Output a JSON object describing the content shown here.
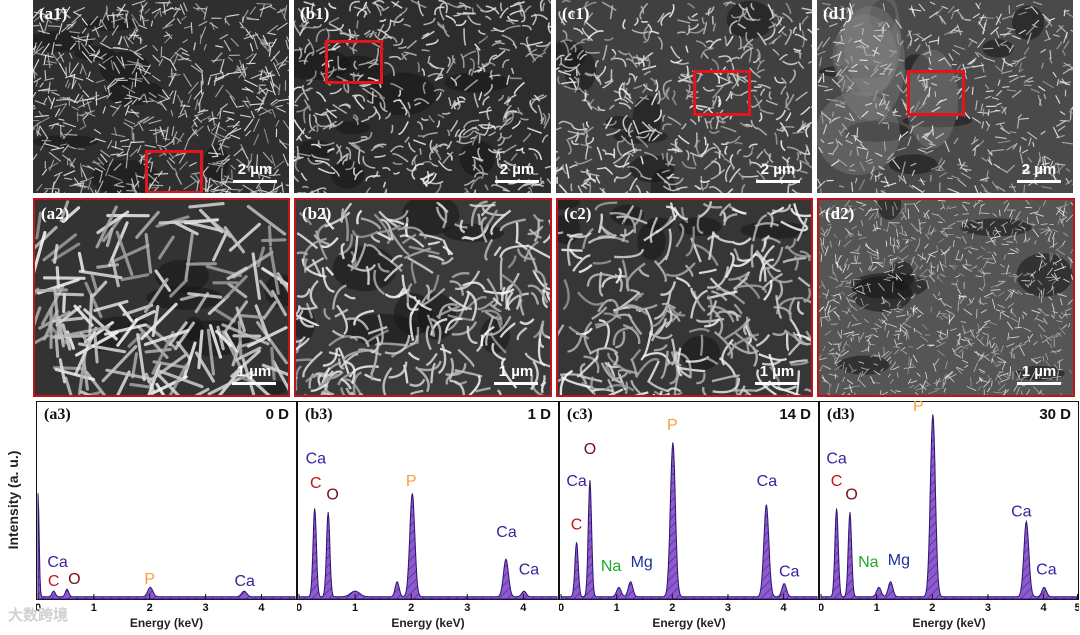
{
  "figure": {
    "sem_low": [
      {
        "label": "(a1)",
        "scale": "2 µm"
      },
      {
        "label": "(b1)",
        "scale": "2 µm"
      },
      {
        "label": "(c1)",
        "scale": "2 µm"
      },
      {
        "label": "(d1)",
        "scale": "2 µm"
      }
    ],
    "sem_high": [
      {
        "label": "(a2)",
        "scale": "1 µm"
      },
      {
        "label": "(b2)",
        "scale": "1 µm"
      },
      {
        "label": "(c2)",
        "scale": "1 µm"
      },
      {
        "label": "(d2)",
        "scale": "1 µm"
      }
    ],
    "ylabel": "Intensity (a. u.)",
    "watermark": "大数跨境"
  },
  "colors": {
    "roi": "#e3141b",
    "panel_border": "#c0141b",
    "fill": "#8e5ad0",
    "ca": "#3a1f9e",
    "c": "#c0141b",
    "o": "#7a0e14",
    "p": "#f0a040",
    "na": "#1fa82a",
    "mg": "#1c2f9a"
  },
  "chart_data": [
    {
      "type": "area",
      "panel": "(a3)",
      "title": "0 D",
      "xlabel": "Energy (keV)",
      "ylabel": "Intensity (a. u.)",
      "xlim": [
        0,
        4.6
      ],
      "xticks": [
        0,
        1,
        2,
        3,
        4
      ],
      "ylim": [
        0,
        1
      ],
      "peaks": [
        {
          "x": 0.0,
          "y": 0.55,
          "w": 0.02
        },
        {
          "x": 0.28,
          "y": 0.03,
          "w": 0.03
        },
        {
          "x": 0.52,
          "y": 0.04,
          "w": 0.03
        },
        {
          "x": 2.01,
          "y": 0.05,
          "w": 0.045
        },
        {
          "x": 3.69,
          "y": 0.03,
          "w": 0.045
        }
      ],
      "annotations": [
        {
          "text": "Ca",
          "element": "ca",
          "x": 0.35,
          "y": 0.17
        },
        {
          "text": "C",
          "element": "c",
          "x": 0.28,
          "y": 0.07
        },
        {
          "text": "O",
          "element": "o",
          "x": 0.65,
          "y": 0.08
        },
        {
          "text": "P",
          "element": "p",
          "x": 2.0,
          "y": 0.08
        },
        {
          "text": "Ca",
          "element": "ca",
          "x": 3.7,
          "y": 0.07
        }
      ]
    },
    {
      "type": "area",
      "panel": "(b3)",
      "title": "1 D",
      "xlabel": "Energy (keV)",
      "xlim": [
        0,
        4.6
      ],
      "xticks": [
        0,
        1,
        2,
        3,
        4
      ],
      "ylim": [
        0,
        1
      ],
      "peaks": [
        {
          "x": 0.28,
          "y": 0.47,
          "w": 0.03
        },
        {
          "x": 0.52,
          "y": 0.45,
          "w": 0.03
        },
        {
          "x": 1.0,
          "y": 0.03,
          "w": 0.08
        },
        {
          "x": 1.75,
          "y": 0.08,
          "w": 0.035
        },
        {
          "x": 2.02,
          "y": 0.55,
          "w": 0.045
        },
        {
          "x": 3.69,
          "y": 0.2,
          "w": 0.045
        },
        {
          "x": 4.01,
          "y": 0.03,
          "w": 0.04
        }
      ],
      "annotations": [
        {
          "text": "Ca",
          "element": "ca",
          "x": 0.3,
          "y": 0.72
        },
        {
          "text": "C",
          "element": "c",
          "x": 0.3,
          "y": 0.59
        },
        {
          "text": "O",
          "element": "o",
          "x": 0.6,
          "y": 0.53
        },
        {
          "text": "P",
          "element": "p",
          "x": 2.0,
          "y": 0.6
        },
        {
          "text": "Ca",
          "element": "ca",
          "x": 3.7,
          "y": 0.33
        },
        {
          "text": "Ca",
          "element": "ca",
          "x": 4.1,
          "y": 0.13
        }
      ]
    },
    {
      "type": "area",
      "panel": "(c3)",
      "title": "14 D",
      "xlabel": "Energy (keV)",
      "xlim": [
        0,
        4.6
      ],
      "xticks": [
        0,
        1,
        2,
        3,
        4
      ],
      "ylim": [
        0,
        1
      ],
      "peaks": [
        {
          "x": 0.28,
          "y": 0.29,
          "w": 0.03
        },
        {
          "x": 0.52,
          "y": 0.62,
          "w": 0.03
        },
        {
          "x": 1.04,
          "y": 0.05,
          "w": 0.04
        },
        {
          "x": 1.25,
          "y": 0.08,
          "w": 0.04
        },
        {
          "x": 2.01,
          "y": 0.82,
          "w": 0.045
        },
        {
          "x": 3.69,
          "y": 0.49,
          "w": 0.045
        },
        {
          "x": 4.01,
          "y": 0.07,
          "w": 0.04
        }
      ],
      "annotations": [
        {
          "text": "O",
          "element": "o",
          "x": 0.52,
          "y": 0.77
        },
        {
          "text": "Ca",
          "element": "ca",
          "x": 0.28,
          "y": 0.6
        },
        {
          "text": "C",
          "element": "c",
          "x": 0.28,
          "y": 0.37
        },
        {
          "text": "P",
          "element": "p",
          "x": 2.0,
          "y": 0.9
        },
        {
          "text": "Na",
          "element": "na",
          "x": 0.9,
          "y": 0.15
        },
        {
          "text": "Mg",
          "element": "mg",
          "x": 1.45,
          "y": 0.17
        },
        {
          "text": "Ca",
          "element": "ca",
          "x": 3.7,
          "y": 0.6
        },
        {
          "text": "Ca",
          "element": "ca",
          "x": 4.1,
          "y": 0.12
        }
      ]
    },
    {
      "type": "area",
      "panel": "(d3)",
      "title": "30 D",
      "xlabel": "Energy (keV)",
      "xlim": [
        0,
        4.6
      ],
      "xticks": [
        0,
        1,
        2,
        3,
        4,
        5
      ],
      "ylim": [
        0,
        1
      ],
      "peaks": [
        {
          "x": 0.28,
          "y": 0.47,
          "w": 0.03
        },
        {
          "x": 0.52,
          "y": 0.45,
          "w": 0.03
        },
        {
          "x": 1.04,
          "y": 0.05,
          "w": 0.04
        },
        {
          "x": 1.25,
          "y": 0.08,
          "w": 0.04
        },
        {
          "x": 2.01,
          "y": 0.97,
          "w": 0.045
        },
        {
          "x": 3.69,
          "y": 0.4,
          "w": 0.045
        },
        {
          "x": 4.01,
          "y": 0.05,
          "w": 0.04
        }
      ],
      "annotations": [
        {
          "text": "P",
          "element": "p",
          "x": 1.75,
          "y": 1.0
        },
        {
          "text": "Ca",
          "element": "ca",
          "x": 0.28,
          "y": 0.72
        },
        {
          "text": "C",
          "element": "c",
          "x": 0.28,
          "y": 0.6
        },
        {
          "text": "O",
          "element": "o",
          "x": 0.55,
          "y": 0.53
        },
        {
          "text": "Na",
          "element": "na",
          "x": 0.85,
          "y": 0.17
        },
        {
          "text": "Mg",
          "element": "mg",
          "x": 1.4,
          "y": 0.18
        },
        {
          "text": "Ca",
          "element": "ca",
          "x": 3.6,
          "y": 0.44
        },
        {
          "text": "Ca",
          "element": "ca",
          "x": 4.05,
          "y": 0.13
        }
      ]
    }
  ]
}
